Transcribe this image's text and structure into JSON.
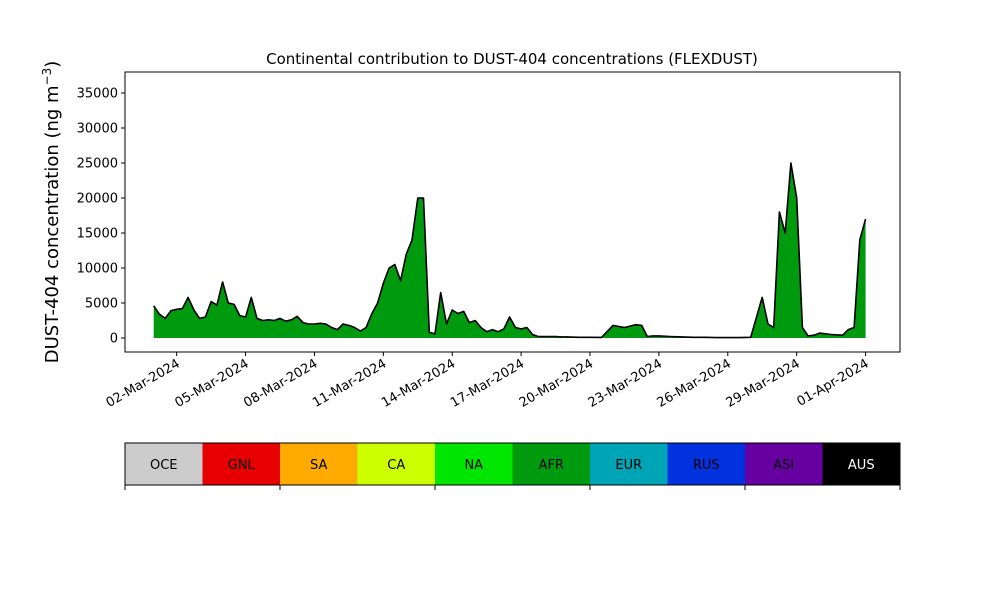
{
  "chart_data": {
    "type": "area",
    "title": "Continental contribution to DUST-404 concentrations (FLEXDUST)",
    "ylabel": "DUST-404 concentration (ng m",
    "ylabel_sup": "−3",
    "ylabel_close": ")",
    "ylim": [
      -2000,
      38000
    ],
    "xlim": [
      "2024-02-28T18:00",
      "2024-04-02T12:00"
    ],
    "yticks": [
      0,
      5000,
      10000,
      15000,
      20000,
      25000,
      30000,
      35000
    ],
    "xticks": [
      {
        "date": "2024-03-02",
        "label": "02-Mar-2024"
      },
      {
        "date": "2024-03-05",
        "label": "05-Mar-2024"
      },
      {
        "date": "2024-03-08",
        "label": "08-Mar-2024"
      },
      {
        "date": "2024-03-11",
        "label": "11-Mar-2024"
      },
      {
        "date": "2024-03-14",
        "label": "14-Mar-2024"
      },
      {
        "date": "2024-03-17",
        "label": "17-Mar-2024"
      },
      {
        "date": "2024-03-20",
        "label": "20-Mar-2024"
      },
      {
        "date": "2024-03-23",
        "label": "23-Mar-2024"
      },
      {
        "date": "2024-03-26",
        "label": "26-Mar-2024"
      },
      {
        "date": "2024-03-29",
        "label": "29-Mar-2024"
      },
      {
        "date": "2024-04-01",
        "label": "01-Apr-2024"
      }
    ],
    "grid": false,
    "legend": "colorbar-below",
    "regions": [
      {
        "name": "OCE",
        "color": "#cccccc",
        "text_color": "#000000"
      },
      {
        "name": "GNL",
        "color": "#e60000",
        "text_color": "#000000"
      },
      {
        "name": "SA",
        "color": "#ffaa00",
        "text_color": "#000000"
      },
      {
        "name": "CA",
        "color": "#ccff00",
        "text_color": "#000000"
      },
      {
        "name": "NA",
        "color": "#00e600",
        "text_color": "#000000"
      },
      {
        "name": "AFR",
        "color": "#009a0e",
        "text_color": "#000000"
      },
      {
        "name": "EUR",
        "color": "#00a5b5",
        "text_color": "#000000"
      },
      {
        "name": "RUS",
        "color": "#0033dd",
        "text_color": "#000000"
      },
      {
        "name": "ASI",
        "color": "#6600a0",
        "text_color": "#000000"
      },
      {
        "name": "AUS",
        "color": "#000000",
        "text_color": "#ffffff"
      }
    ],
    "series": [
      {
        "name": "AFR",
        "x": [
          "2024-03-01T00:00",
          "2024-03-01T06:00",
          "2024-03-01T12:00",
          "2024-03-01T18:00",
          "2024-03-02T00:00",
          "2024-03-02T06:00",
          "2024-03-02T12:00",
          "2024-03-02T18:00",
          "2024-03-03T00:00",
          "2024-03-03T06:00",
          "2024-03-03T12:00",
          "2024-03-03T18:00",
          "2024-03-04T00:00",
          "2024-03-04T06:00",
          "2024-03-04T12:00",
          "2024-03-04T18:00",
          "2024-03-05T00:00",
          "2024-03-05T06:00",
          "2024-03-05T12:00",
          "2024-03-05T18:00",
          "2024-03-06T00:00",
          "2024-03-06T06:00",
          "2024-03-06T12:00",
          "2024-03-06T18:00",
          "2024-03-07T00:00",
          "2024-03-07T06:00",
          "2024-03-07T12:00",
          "2024-03-07T18:00",
          "2024-03-08T00:00",
          "2024-03-08T06:00",
          "2024-03-08T12:00",
          "2024-03-08T18:00",
          "2024-03-09T00:00",
          "2024-03-09T06:00",
          "2024-03-09T12:00",
          "2024-03-09T18:00",
          "2024-03-10T00:00",
          "2024-03-10T06:00",
          "2024-03-10T12:00",
          "2024-03-10T18:00",
          "2024-03-11T00:00",
          "2024-03-11T06:00",
          "2024-03-11T12:00",
          "2024-03-11T18:00",
          "2024-03-12T00:00",
          "2024-03-12T06:00",
          "2024-03-12T12:00",
          "2024-03-12T18:00",
          "2024-03-13T00:00",
          "2024-03-13T06:00",
          "2024-03-13T12:00",
          "2024-03-13T18:00",
          "2024-03-14T00:00",
          "2024-03-14T06:00",
          "2024-03-14T12:00",
          "2024-03-14T18:00",
          "2024-03-15T00:00",
          "2024-03-15T06:00",
          "2024-03-15T12:00",
          "2024-03-15T18:00",
          "2024-03-16T00:00",
          "2024-03-16T06:00",
          "2024-03-16T12:00",
          "2024-03-16T18:00",
          "2024-03-17T00:00",
          "2024-03-17T06:00",
          "2024-03-17T12:00",
          "2024-03-17T18:00",
          "2024-03-18T00:00",
          "2024-03-18T06:00",
          "2024-03-18T12:00",
          "2024-03-18T18:00",
          "2024-03-19T00:00",
          "2024-03-19T12:00",
          "2024-03-20T00:00",
          "2024-03-20T12:00",
          "2024-03-21T00:00",
          "2024-03-21T12:00",
          "2024-03-22T00:00",
          "2024-03-22T06:00",
          "2024-03-22T12:00",
          "2024-03-22T18:00",
          "2024-03-23T00:00",
          "2024-03-23T12:00",
          "2024-03-24T00:00",
          "2024-03-24T12:00",
          "2024-03-25T00:00",
          "2024-03-25T12:00",
          "2024-03-26T00:00",
          "2024-03-26T12:00",
          "2024-03-27T00:00",
          "2024-03-27T12:00",
          "2024-03-27T18:00",
          "2024-03-28T00:00",
          "2024-03-28T06:00",
          "2024-03-28T12:00",
          "2024-03-28T18:00",
          "2024-03-29T00:00",
          "2024-03-29T06:00",
          "2024-03-29T12:00",
          "2024-03-29T18:00",
          "2024-03-30T00:00",
          "2024-03-30T12:00",
          "2024-03-31T00:00",
          "2024-03-31T06:00",
          "2024-03-31T12:00",
          "2024-03-31T18:00",
          "2024-04-01T00:00"
        ],
        "values": [
          4600,
          3400,
          2800,
          3900,
          4100,
          4200,
          5800,
          4000,
          2800,
          3000,
          5200,
          4700,
          8000,
          5000,
          4800,
          3200,
          3000,
          5800,
          2800,
          2500,
          2600,
          2500,
          2800,
          2400,
          2600,
          3100,
          2200,
          2000,
          2000,
          2100,
          2000,
          1500,
          1200,
          2000,
          1800,
          1500,
          1000,
          1500,
          3500,
          5000,
          7800,
          10000,
          10500,
          8200,
          12000,
          14000,
          20000,
          20000,
          800,
          600,
          6500,
          2000,
          4000,
          3500,
          3800,
          2200,
          2500,
          1500,
          900,
          1200,
          900,
          1300,
          3000,
          1500,
          1300,
          1500,
          500,
          200,
          200,
          200,
          200,
          150,
          150,
          100,
          100,
          80,
          1800,
          1500,
          1900,
          1800,
          200,
          300,
          300,
          200,
          150,
          100,
          100,
          50,
          50,
          50,
          100,
          5800,
          2000,
          1500,
          18000,
          15000,
          25000,
          20000,
          1500,
          300,
          400,
          700,
          500,
          400,
          1200,
          1500,
          14000,
          17000
        ]
      }
    ]
  }
}
